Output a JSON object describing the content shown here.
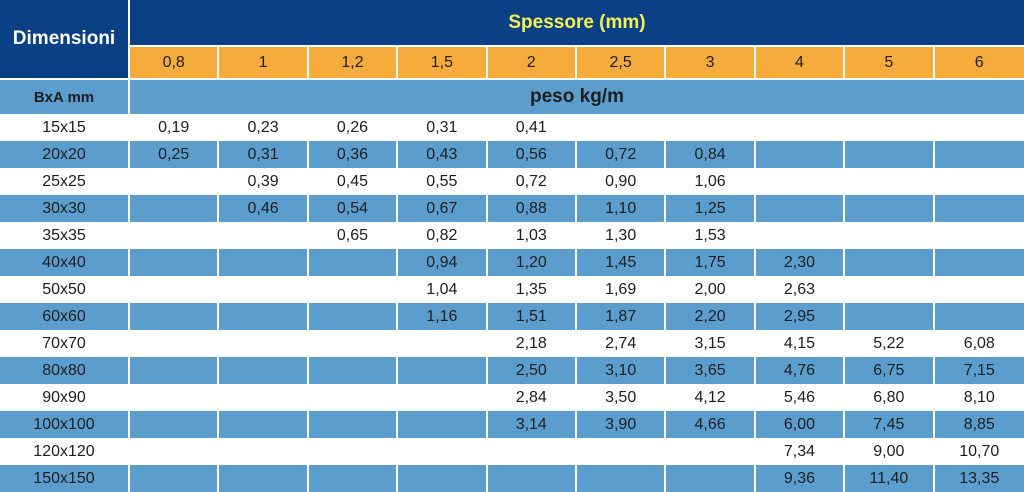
{
  "header": {
    "dimensioni_label": "Dimensioni",
    "spessore_label": "Spessore (mm)",
    "bxa_label": "BxA mm",
    "peso_label": "peso kg/m"
  },
  "thicknesses": [
    "0,8",
    "1",
    "1,2",
    "1,5",
    "2",
    "2,5",
    "3",
    "4",
    "5",
    "6"
  ],
  "rows": [
    {
      "dim": "15x15",
      "values": [
        "0,19",
        "0,23",
        "0,26",
        "0,31",
        "0,41",
        "",
        "",
        "",
        "",
        ""
      ]
    },
    {
      "dim": "20x20",
      "values": [
        "0,25",
        "0,31",
        "0,36",
        "0,43",
        "0,56",
        "0,72",
        "0,84",
        "",
        "",
        ""
      ]
    },
    {
      "dim": "25x25",
      "values": [
        "",
        "0,39",
        "0,45",
        "0,55",
        "0,72",
        "0,90",
        "1,06",
        "",
        "",
        ""
      ]
    },
    {
      "dim": "30x30",
      "values": [
        "",
        "0,46",
        "0,54",
        "0,67",
        "0,88",
        "1,10",
        "1,25",
        "",
        "",
        ""
      ]
    },
    {
      "dim": "35x35",
      "values": [
        "",
        "",
        "0,65",
        "0,82",
        "1,03",
        "1,30",
        "1,53",
        "",
        "",
        ""
      ]
    },
    {
      "dim": "40x40",
      "values": [
        "",
        "",
        "",
        "0,94",
        "1,20",
        "1,45",
        "1,75",
        "2,30",
        "",
        ""
      ]
    },
    {
      "dim": "50x50",
      "values": [
        "",
        "",
        "",
        "1,04",
        "1,35",
        "1,69",
        "2,00",
        "2,63",
        "",
        ""
      ]
    },
    {
      "dim": "60x60",
      "values": [
        "",
        "",
        "",
        "1,16",
        "1,51",
        "1,87",
        "2,20",
        "2,95",
        "",
        ""
      ]
    },
    {
      "dim": "70x70",
      "values": [
        "",
        "",
        "",
        "",
        "2,18",
        "2,74",
        "3,15",
        "4,15",
        "5,22",
        "6,08"
      ]
    },
    {
      "dim": "80x80",
      "values": [
        "",
        "",
        "",
        "",
        "2,50",
        "3,10",
        "3,65",
        "4,76",
        "6,75",
        "7,15"
      ]
    },
    {
      "dim": "90x90",
      "values": [
        "",
        "",
        "",
        "",
        "2,84",
        "3,50",
        "4,12",
        "5,46",
        "6,80",
        "8,10"
      ]
    },
    {
      "dim": "100x100",
      "values": [
        "",
        "",
        "",
        "",
        "3,14",
        "3,90",
        "4,66",
        "6,00",
        "7,45",
        "8,85"
      ]
    },
    {
      "dim": "120x120",
      "values": [
        "",
        "",
        "",
        "",
        "",
        "",
        "",
        "7,34",
        "9,00",
        "10,70"
      ]
    },
    {
      "dim": "150x150",
      "values": [
        "",
        "",
        "",
        "",
        "",
        "",
        "",
        "9,36",
        "11,40",
        "13,35"
      ]
    }
  ],
  "colors": {
    "header_dark_blue": "#0b4184",
    "header_title_yellow": "#f6f054",
    "thickness_orange": "#f6ac3c",
    "stripe_blue": "#5b9ecd",
    "stripe_white": "#ffffff",
    "text_dark": "#1e1e1e"
  }
}
